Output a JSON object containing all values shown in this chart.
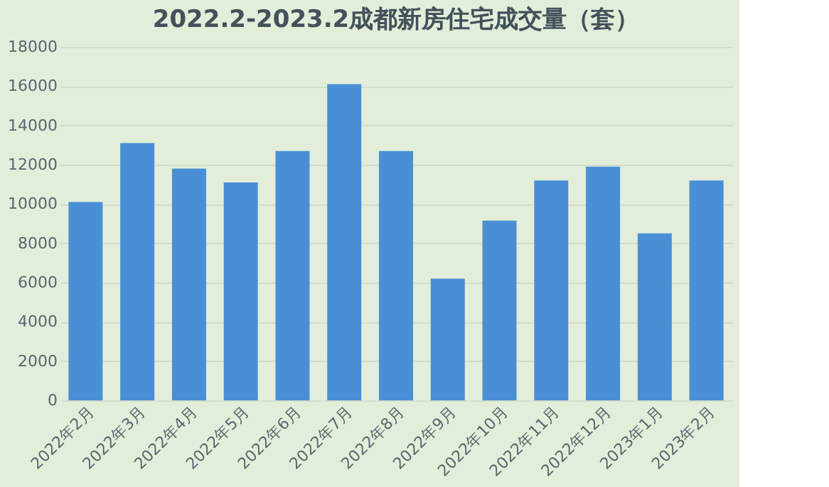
{
  "chart_data": {
    "type": "bar",
    "title": "2022.2-2023.2成都新房住宅成交量（套）",
    "categories": [
      "2022年2月",
      "2022年3月",
      "2022年4月",
      "2022年5月",
      "2022年6月",
      "2022年7月",
      "2022年8月",
      "2022年9月",
      "2022年10月",
      "2022年11月",
      "2022年12月",
      "2023年1月",
      "2023年2月"
    ],
    "values": [
      10100,
      13100,
      11800,
      11100,
      12700,
      16100,
      12700,
      6200,
      9150,
      11200,
      11900,
      8500,
      11200
    ],
    "color": "#4a8fd6",
    "ylim": [
      0,
      18000
    ],
    "yticks": [
      0,
      2000,
      4000,
      6000,
      8000,
      10000,
      12000,
      14000,
      16000,
      18000
    ],
    "grid": "y"
  }
}
